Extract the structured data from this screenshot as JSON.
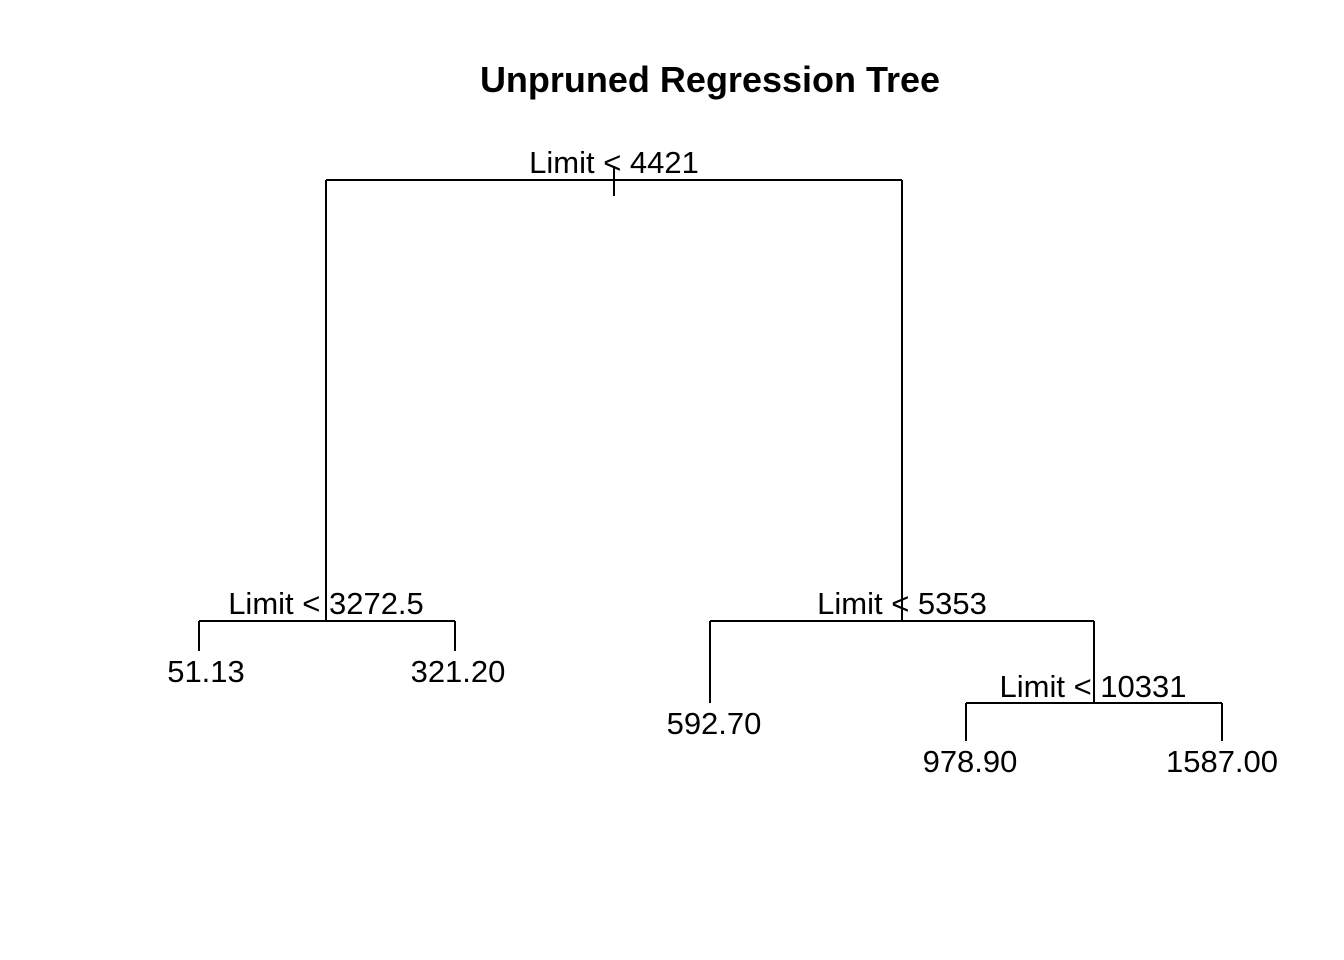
{
  "title": "Unpruned Regression Tree",
  "tree": {
    "split": "Limit < 4421",
    "left": {
      "split": "Limit < 3272.5",
      "left": {
        "leaf": "51.13"
      },
      "right": {
        "leaf": "321.20"
      }
    },
    "right": {
      "split": "Limit < 5353",
      "left": {
        "leaf": "592.70"
      },
      "right": {
        "split": "Limit < 10331",
        "left": {
          "leaf": "978.90"
        },
        "right": {
          "leaf": "1587.00"
        }
      }
    }
  }
}
